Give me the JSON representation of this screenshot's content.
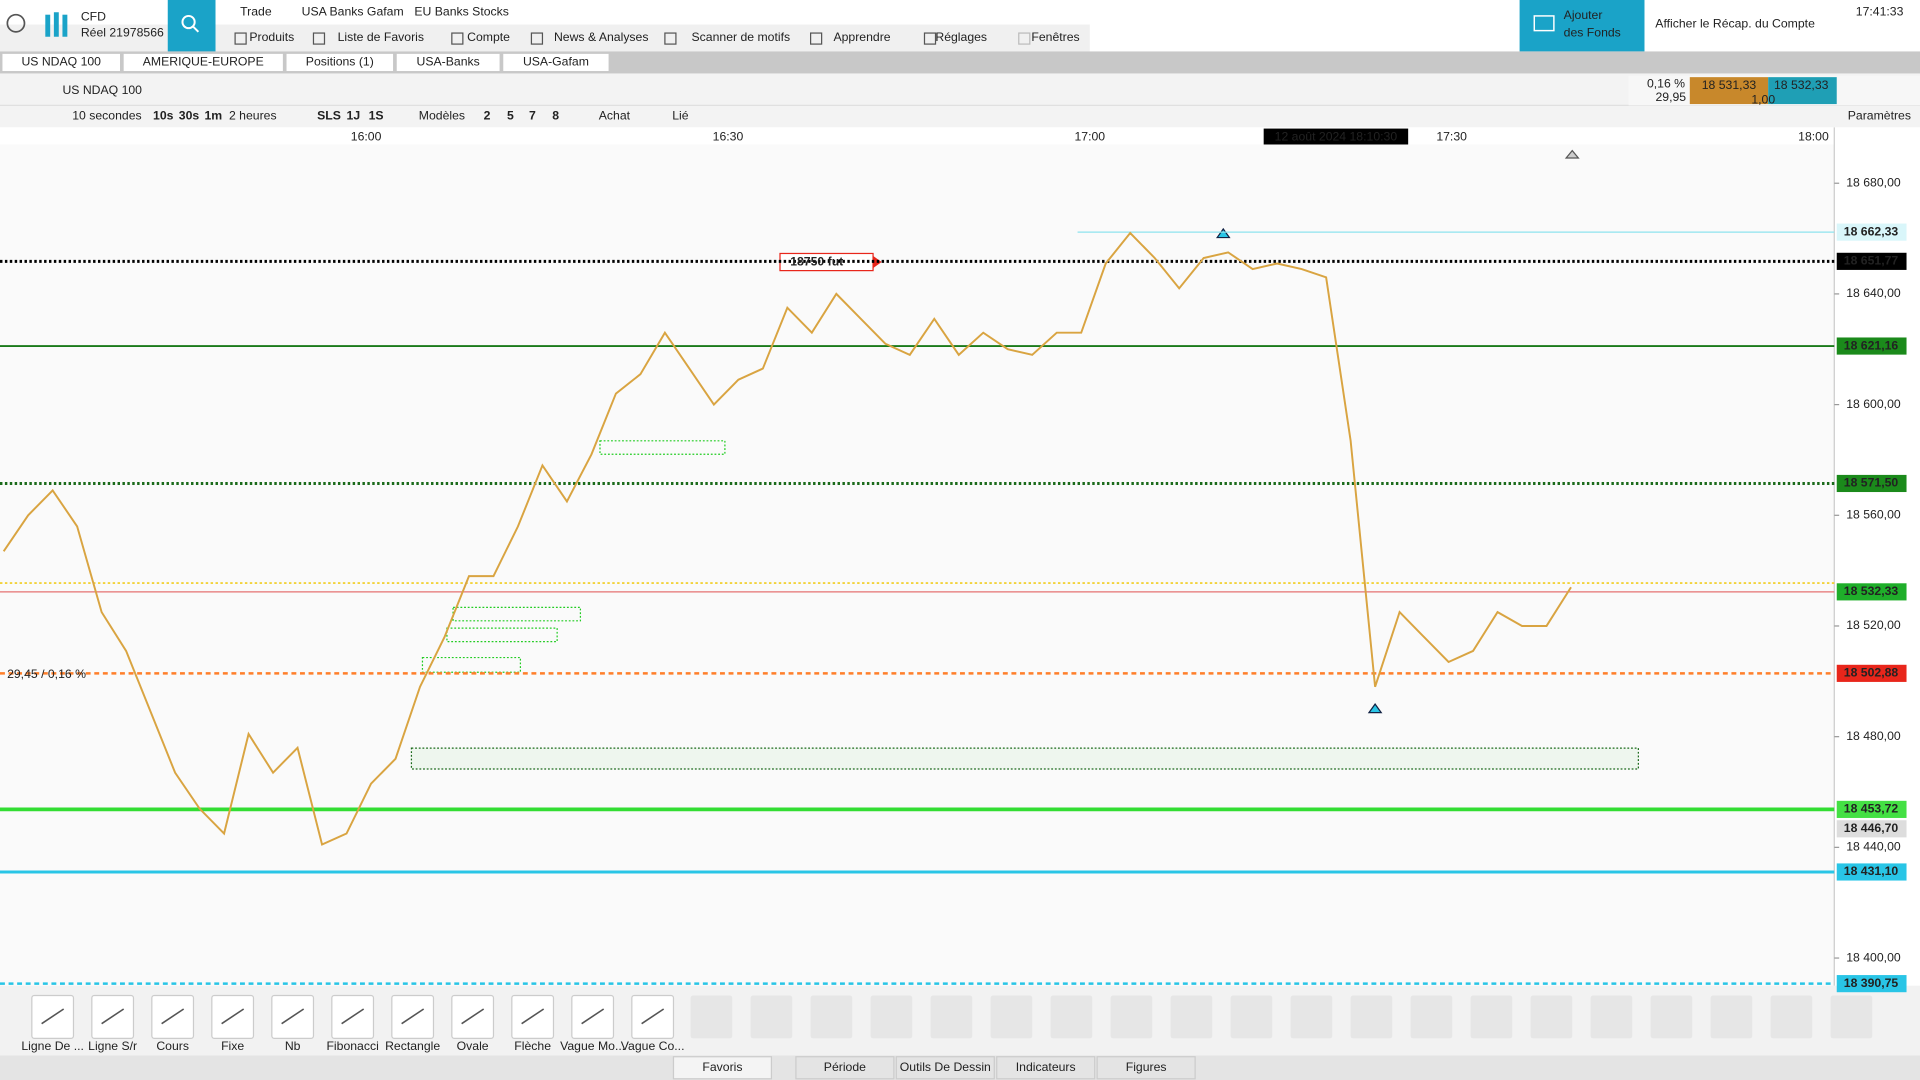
{
  "header": {
    "brand": "CFD",
    "account": "Réel 21978566",
    "tabs": [
      "Trade",
      "USA Banks Gafam",
      "EU Banks Stocks"
    ],
    "menu": [
      "Produits",
      "Liste de Favoris",
      "Compte",
      "News & Analyses",
      "Scanner de motifs",
      "Apprendre",
      "Réglages",
      "Fenêtres"
    ],
    "add_funds": [
      "Ajouter",
      "des Fonds"
    ],
    "summary": "Afficher le Récap. du Compte",
    "clock": "17:41:33"
  },
  "workspaces": [
    "US NDAQ 100",
    "AMERIQUE-EUROPE",
    "Positions (1)",
    "USA-Banks",
    "USA-Gafam"
  ],
  "instrument": {
    "name": "US NDAQ 100",
    "change_pct": "0,16 %",
    "change": "29,95",
    "bid": "18 531,33",
    "ask": "18 532,33",
    "size": "1,00"
  },
  "toolbar": [
    "10 secondes",
    "10s",
    "30s",
    "1m",
    "2 heures",
    "SLS",
    "1J",
    "1S",
    "Modèles",
    "2",
    "5",
    "7",
    "8",
    "Achat",
    "Lié",
    "Paramètres"
  ],
  "chart": {
    "type": "line",
    "color": "#d9a441",
    "x_ticks": [
      "16:00",
      "16:30",
      "17:00",
      "17:30",
      "18:00"
    ],
    "crosshair_time": "12 août 2024 18:10:30",
    "ylim": [
      18390,
      18694
    ],
    "yticks": [
      {
        "value": 18680,
        "label": "18 680,00"
      },
      {
        "value": 18640,
        "label": "18 640,00"
      },
      {
        "value": 18600,
        "label": "18 600,00"
      },
      {
        "value": 18560,
        "label": "18 560,00"
      },
      {
        "value": 18520,
        "label": "18 520,00"
      },
      {
        "value": 18480,
        "label": "18 480,00"
      },
      {
        "value": 18440,
        "label": "18 440,00"
      },
      {
        "value": 18400,
        "label": "18 400,00"
      }
    ],
    "prices": [
      18547,
      18560,
      18569,
      18556,
      18525,
      18511,
      18489,
      18467,
      18454,
      18445,
      18481,
      18467,
      18476,
      18441,
      18445,
      18463,
      18472,
      18498,
      18516,
      18538,
      18538,
      18556,
      18578,
      18565,
      18582,
      18604,
      18611,
      18626,
      18613,
      18600,
      18609,
      18613,
      18635,
      18626,
      18640,
      18631,
      18622,
      18618,
      18631,
      18618,
      18626,
      18620,
      18618,
      18626,
      18626,
      18651,
      18662,
      18653,
      18642,
      18653,
      18655,
      18649,
      18651,
      18649,
      18646,
      18587,
      18498,
      18525,
      18516,
      18507,
      18511,
      18525,
      18520,
      18520,
      18534
    ],
    "levels": [
      {
        "value": 18662.33,
        "label": "18 662,33",
        "color": "#8ee3ee",
        "style": "segment",
        "width": 1,
        "label_bg": "#d9f6fa",
        "label_color": "#135"
      },
      {
        "value": 18651.77,
        "label": "18 651,77",
        "color": "#000000",
        "style": "dotted",
        "width": 2.5,
        "label_bg": "#000000",
        "label_color": "#fff"
      },
      {
        "value": 18621.16,
        "label": "18 621,16",
        "color": "#1a7a1a",
        "style": "solid",
        "width": 1.5,
        "label_bg": "#1b8a1b",
        "label_color": "#fff"
      },
      {
        "value": 18571.5,
        "label": "18 571,50",
        "color": "#1a6a1a",
        "style": "dotted",
        "width": 2.5,
        "label_bg": "#1b8a1b",
        "label_color": "#fff"
      },
      {
        "value": 18535.5,
        "color": "#f2d23a",
        "style": "dotted",
        "width": 1.5
      },
      {
        "value": 18532.33,
        "label": "18 532,33",
        "color": "#e57373",
        "style": "solid",
        "width": 1,
        "label_bg": "#1fae2a",
        "label_color": "#fff"
      },
      {
        "value": 18502.88,
        "label": "18 502,88",
        "color": "#ff7f2a",
        "style": "dashed",
        "width": 2,
        "label_bg": "#e8261b",
        "label_color": "#fff"
      },
      {
        "value": 18453.72,
        "label": "18 453,72",
        "color": "#33dd33",
        "style": "solid",
        "width": 3,
        "label_bg": "#44e044",
        "label_color": "#063"
      },
      {
        "value": 18446.7,
        "label": "18 446,70",
        "style": "none",
        "label_bg": "#dddddd",
        "label_color": "#111"
      },
      {
        "value": 18431.1,
        "label": "18 431,10",
        "color": "#29c5e6",
        "style": "solid",
        "width": 2.5,
        "label_bg": "#29c5e6",
        "label_color": "#024"
      },
      {
        "value": 18390.75,
        "label": "18 390,75",
        "color": "#29c5e6",
        "style": "dashed",
        "width": 2,
        "label_bg": "#29c5e6",
        "label_color": "#024"
      }
    ],
    "annotations": [
      "18750 fut",
      "29,45 / 0,16 %"
    ]
  },
  "tools": [
    "Ligne De ...",
    "Ligne S/r",
    "Cours",
    "Fixe",
    "Nb",
    "Fibonacci",
    "Rectangle",
    "Ovale",
    "Flèche",
    "Vague Mo...",
    "Vague Co..."
  ],
  "bottom_tabs": [
    "Favoris",
    "Période",
    "Outils De Dessin",
    "Indicateurs",
    "Figures"
  ]
}
